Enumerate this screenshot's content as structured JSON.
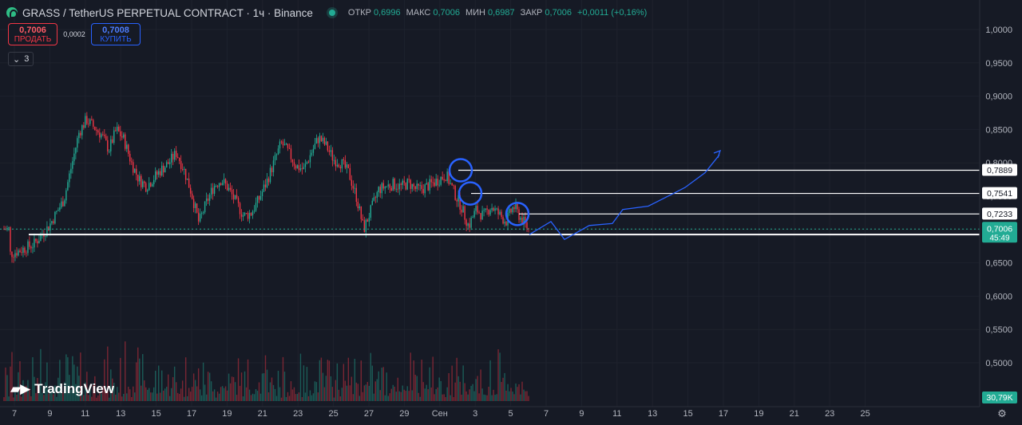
{
  "header": {
    "title": "GRASS / TetherUS PERPETUAL CONTRACT · 1ч · Binance",
    "ohlc": [
      {
        "label": "ОТКР",
        "value": "0,6996"
      },
      {
        "label": "МАКС",
        "value": "0,7006"
      },
      {
        "label": "МИН",
        "value": "0,6987"
      },
      {
        "label": "ЗАКР",
        "value": "0,7006"
      }
    ],
    "change": "+0,0011 (+0,16%)"
  },
  "trade": {
    "sell_price": "0,7006",
    "sell_label": "ПРОДАТЬ",
    "spread": "0,0002",
    "buy_price": "0,7008",
    "buy_label": "КУПИТЬ"
  },
  "layers": {
    "count": "3"
  },
  "branding": {
    "name": "TradingView"
  },
  "colors": {
    "background": "#161a25",
    "up": "#22ab94",
    "down": "#f23645",
    "drawing": "#2962ff",
    "level_line": "#ffffff"
  },
  "chart_data": {
    "type": "candlestick",
    "symbol": "GRASS / TetherUS PERPETUAL CONTRACT",
    "interval": "1ч",
    "exchange": "Binance",
    "price_axis": {
      "ticks": [
        1.0,
        0.95,
        0.9,
        0.85,
        0.8,
        0.75,
        0.7,
        0.65,
        0.6,
        0.55,
        0.5
      ],
      "tick_labels": [
        "1,0000",
        "0,9500",
        "0,9000",
        "0,8500",
        "0,8000",
        "0,7500",
        "0,7000",
        "0,6500",
        "0,6000",
        "0,5500",
        "0,5000"
      ]
    },
    "time_axis": {
      "labels": [
        "7",
        "9",
        "11",
        "13",
        "15",
        "17",
        "19",
        "21",
        "23",
        "25",
        "27",
        "29",
        "Сен",
        "3",
        "5",
        "7",
        "9",
        "11",
        "13",
        "15",
        "17",
        "19",
        "21",
        "23",
        "25"
      ]
    },
    "price_path": [
      [
        0.667,
        0.663
      ],
      [
        2,
        0.668
      ],
      [
        4,
        0.678
      ],
      [
        6,
        0.705
      ],
      [
        8,
        0.745
      ],
      [
        9,
        0.795
      ],
      [
        10,
        0.845
      ],
      [
        11,
        0.865
      ],
      [
        13,
        0.842
      ],
      [
        14,
        0.82
      ],
      [
        15,
        0.85
      ],
      [
        16,
        0.835
      ],
      [
        17,
        0.8
      ],
      [
        18,
        0.775
      ],
      [
        19,
        0.765
      ],
      [
        21,
        0.79
      ],
      [
        22,
        0.8
      ],
      [
        23,
        0.815
      ],
      [
        24,
        0.79
      ],
      [
        25,
        0.755
      ],
      [
        26,
        0.71
      ],
      [
        27,
        0.74
      ],
      [
        28,
        0.765
      ],
      [
        29,
        0.775
      ],
      [
        30,
        0.76
      ],
      [
        31,
        0.74
      ],
      [
        32,
        0.72
      ],
      [
        33,
        0.725
      ],
      [
        34,
        0.745
      ],
      [
        35,
        0.77
      ],
      [
        36,
        0.8
      ],
      [
        37,
        0.83
      ],
      [
        38,
        0.815
      ],
      [
        39,
        0.795
      ],
      [
        40,
        0.79
      ],
      [
        41,
        0.815
      ],
      [
        42,
        0.838
      ],
      [
        43,
        0.825
      ],
      [
        44,
        0.805
      ],
      [
        45,
        0.8
      ],
      [
        46,
        0.785
      ],
      [
        47,
        0.75
      ],
      [
        48,
        0.7
      ],
      [
        49,
        0.73
      ],
      [
        50,
        0.76
      ],
      [
        51,
        0.765
      ],
      [
        52,
        0.768
      ],
      [
        53,
        0.764
      ],
      [
        54,
        0.77
      ],
      [
        55,
        0.76
      ],
      [
        56,
        0.762
      ],
      [
        57,
        0.768
      ],
      [
        58,
        0.775
      ],
      [
        59,
        0.782
      ],
      [
        60,
        0.757
      ],
      [
        61,
        0.735
      ],
      [
        62,
        0.705
      ],
      [
        63,
        0.73
      ],
      [
        64,
        0.72
      ],
      [
        65,
        0.735
      ],
      [
        66,
        0.723
      ],
      [
        67,
        0.712
      ],
      [
        68,
        0.735
      ],
      [
        69,
        0.716
      ],
      [
        70,
        0.7006
      ]
    ],
    "volume_max_label": "30,79K",
    "last_price": {
      "value": 0.7006,
      "label": "0,7006",
      "countdown": "45:49"
    },
    "horizontal_levels": [
      {
        "value": 0.7889,
        "label": "0,7889"
      },
      {
        "value": 0.7541,
        "label": "0,7541"
      },
      {
        "value": 0.7233,
        "label": "0,7233"
      },
      {
        "value": 0.6925,
        "label": "0,6925"
      }
    ],
    "projected_path": [
      [
        0.701,
        0.6925
      ],
      [
        0.703,
        0.712
      ],
      [
        0.705,
        0.685
      ],
      [
        0.707,
        0.706
      ],
      [
        0.709,
        0.709
      ],
      [
        0.711,
        0.73
      ],
      [
        0.713,
        0.735
      ],
      [
        0.715,
        0.755
      ],
      [
        0.717,
        0.763
      ],
      [
        0.719,
        0.785
      ],
      [
        0.72,
        0.812
      ]
    ]
  }
}
